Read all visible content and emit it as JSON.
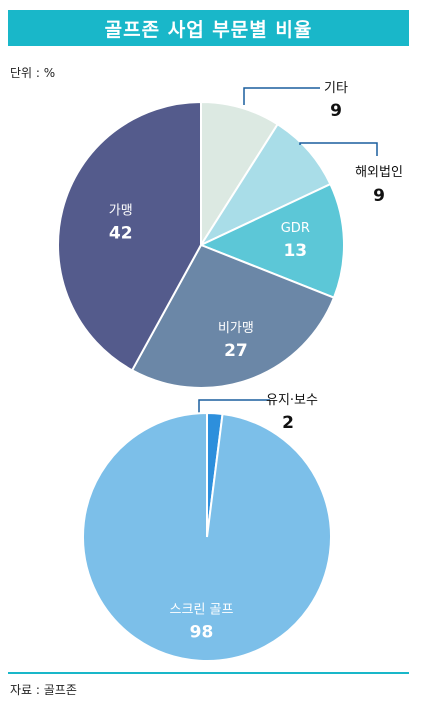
{
  "title": "골프존  사업 부문별 비율",
  "unit": "단위 : %",
  "source": "자료 : 골프존",
  "chart_data": [
    {
      "type": "pie",
      "slices": [
        {
          "label": "기타",
          "value": 9,
          "color": "#dce9e2",
          "label_pos": "outside"
        },
        {
          "label": "해외법인",
          "value": 9,
          "color": "#a9dde8",
          "label_pos": "outside"
        },
        {
          "label": "GDR",
          "value": 13,
          "color": "#5cc7d7",
          "label_pos": "inside"
        },
        {
          "label": "비가맹",
          "value": 27,
          "color": "#6b87a7",
          "label_pos": "inside"
        },
        {
          "label": "가맹",
          "value": 42,
          "color": "#545b8c",
          "label_pos": "inside"
        }
      ]
    },
    {
      "type": "pie",
      "slices": [
        {
          "label": "유지·보수",
          "value": 2,
          "color": "#2d8fdc",
          "label_pos": "outside"
        },
        {
          "label": "스크린 골프",
          "value": 98,
          "color": "#7cbfe9",
          "label_pos": "inside"
        }
      ]
    }
  ]
}
